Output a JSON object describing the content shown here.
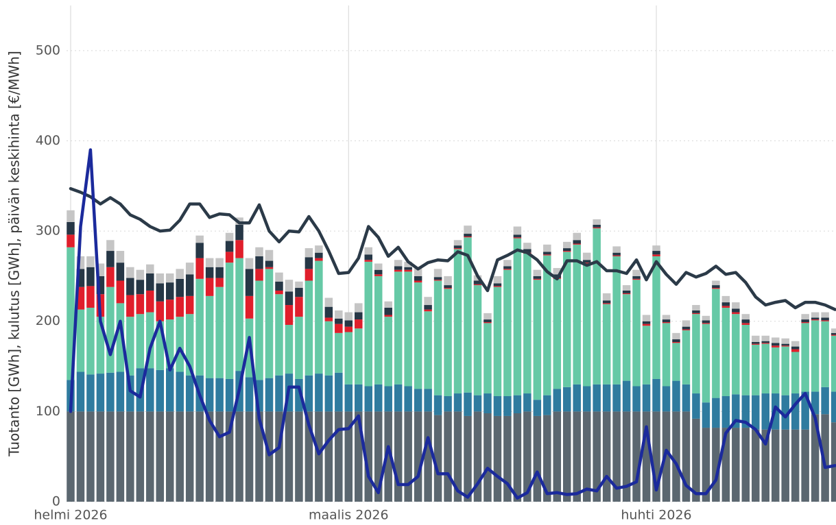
{
  "chart_data": {
    "type": "bar",
    "stacked": true,
    "y_label": "Tuotanto [GWh], kulutus [GWh], päivän keskihinta [€/MWh]",
    "categories": [
      "helmi 2026",
      null,
      null,
      null,
      null,
      null,
      null,
      null,
      null,
      null,
      null,
      null,
      null,
      null,
      null,
      null,
      null,
      null,
      null,
      null,
      null,
      null,
      null,
      null,
      null,
      null,
      null,
      null,
      "maalis 2026",
      null,
      null,
      null,
      null,
      null,
      null,
      null,
      null,
      null,
      null,
      null,
      null,
      null,
      null,
      null,
      null,
      null,
      null,
      null,
      null,
      null,
      null,
      null,
      null,
      null,
      null,
      null,
      null,
      null,
      null,
      "huhti 2026",
      null,
      null,
      null,
      null,
      null,
      null,
      null,
      null,
      null,
      null,
      null,
      null,
      null,
      null,
      null,
      null,
      null,
      null
    ],
    "ylim": [
      0,
      550
    ],
    "yticks": [
      0,
      100,
      200,
      300,
      400,
      500
    ],
    "grid": true,
    "series": [
      {
        "type": "bar",
        "color": "#5b6770",
        "values": [
          100,
          100,
          100,
          100,
          100,
          100,
          100,
          100,
          100,
          100,
          100,
          100,
          100,
          100,
          100,
          100,
          100,
          100,
          100,
          100,
          100,
          100,
          100,
          100,
          100,
          100,
          100,
          100,
          100,
          100,
          100,
          100,
          100,
          100,
          100,
          100,
          100,
          96,
          100,
          100,
          95,
          100,
          98,
          95,
          95,
          98,
          100,
          95,
          96,
          100,
          100,
          100,
          100,
          100,
          100,
          100,
          100,
          100,
          100,
          100,
          100,
          100,
          100,
          92,
          82,
          82,
          82,
          82,
          82,
          80,
          80,
          80,
          80,
          80,
          80,
          97,
          97,
          88
        ]
      },
      {
        "type": "bar",
        "color": "#2f7b9f",
        "values": [
          35,
          44,
          41,
          42,
          43,
          44,
          40,
          48,
          48,
          46,
          48,
          44,
          40,
          40,
          37,
          37,
          36,
          45,
          38,
          35,
          37,
          40,
          42,
          36,
          40,
          42,
          40,
          43,
          30,
          30,
          28,
          30,
          28,
          30,
          28,
          25,
          25,
          22,
          17,
          20,
          26,
          18,
          22,
          22,
          22,
          20,
          20,
          18,
          22,
          25,
          27,
          30,
          28,
          30,
          30,
          30,
          34,
          28,
          30,
          36,
          28,
          34,
          30,
          28,
          28,
          33,
          35,
          37,
          36,
          38,
          40,
          40,
          38,
          40,
          42,
          25,
          30,
          34
        ]
      },
      {
        "type": "bar",
        "color": "#66c9a6",
        "values": [
          147,
          69,
          74,
          63,
          95,
          76,
          65,
          60,
          62,
          54,
          54,
          61,
          68,
          107,
          91,
          101,
          129,
          125,
          65,
          110,
          121,
          90,
          54,
          69,
          105,
          125,
          60,
          44,
          58,
          62,
          138,
          120,
          77,
          125,
          127,
          118,
          86,
          127,
          119,
          160,
          172,
          122,
          78,
          121,
          140,
          174,
          155,
          133,
          155,
          122,
          150,
          155,
          136,
          173,
          89,
          142,
          96,
          118,
          65,
          136,
          70,
          42,
          60,
          88,
          87,
          121,
          98,
          89,
          78,
          56,
          55,
          51,
          54,
          46,
          76,
          79,
          73,
          62
        ]
      },
      {
        "type": "bar",
        "color": "#e01e2b",
        "values": [
          14,
          25,
          24,
          25,
          22,
          25,
          24,
          22,
          24,
          22,
          22,
          22,
          20,
          23,
          20,
          10,
          12,
          20,
          25,
          13,
          2,
          4,
          22,
          22,
          13,
          3,
          4,
          10,
          6,
          10,
          2,
          2,
          2,
          2,
          2,
          2,
          2,
          1,
          1,
          1,
          1,
          1,
          1,
          1,
          1,
          1,
          1,
          1,
          1,
          1,
          1,
          1,
          1,
          1,
          1,
          1,
          1,
          1,
          2,
          2,
          1,
          1,
          1,
          1,
          1,
          1,
          2,
          2,
          2,
          1,
          1,
          2,
          1,
          3,
          1,
          1,
          1,
          1
        ]
      },
      {
        "type": "bar",
        "color": "#263746",
        "values": [
          14,
          20,
          21,
          20,
          18,
          20,
          19,
          16,
          19,
          20,
          19,
          20,
          24,
          17,
          12,
          12,
          12,
          17,
          30,
          14,
          7,
          10,
          15,
          10,
          13,
          6,
          12,
          6,
          7,
          8,
          6,
          5,
          8,
          4,
          3,
          5,
          5,
          3,
          3,
          3,
          3,
          4,
          3,
          3,
          3,
          3,
          4,
          3,
          3,
          4,
          3,
          4,
          3,
          3,
          3,
          3,
          3,
          3,
          3,
          4,
          3,
          3,
          3,
          3,
          3,
          3,
          4,
          4,
          4,
          2,
          2,
          3,
          2,
          3,
          3,
          2,
          3,
          2
        ]
      },
      {
        "type": "bar",
        "color": "#c5c5c5",
        "values": [
          13,
          14,
          12,
          14,
          12,
          13,
          12,
          11,
          10,
          11,
          10,
          11,
          13,
          8,
          10,
          10,
          9,
          8,
          12,
          10,
          12,
          10,
          13,
          7,
          10,
          8,
          10,
          9,
          9,
          10,
          8,
          7,
          7,
          7,
          6,
          9,
          9,
          9,
          10,
          6,
          9,
          6,
          7,
          8,
          7,
          9,
          7,
          7,
          8,
          7,
          7,
          8,
          8,
          6,
          8,
          7,
          6,
          7,
          7,
          6,
          5,
          7,
          7,
          6,
          5,
          5,
          7,
          7,
          6,
          7,
          6,
          6,
          6,
          6,
          6,
          6,
          6,
          5
        ]
      },
      {
        "type": "line",
        "color": "#2b3a48",
        "values": [
          347,
          343,
          338,
          330,
          337,
          330,
          318,
          313,
          305,
          300,
          301,
          312,
          330,
          330,
          315,
          319,
          318,
          309,
          309,
          329,
          300,
          288,
          300,
          299,
          316,
          300,
          278,
          253,
          254,
          270,
          305,
          293,
          272,
          282,
          266,
          258,
          265,
          268,
          267,
          277,
          273,
          250,
          234,
          268,
          273,
          279,
          276,
          268,
          255,
          247,
          267,
          267,
          262,
          266,
          256,
          256,
          253,
          268,
          246,
          266,
          252,
          241,
          254,
          249,
          253,
          261,
          252,
          254,
          243,
          227,
          218,
          221,
          223,
          215,
          221,
          221,
          218,
          213
        ]
      },
      {
        "type": "line",
        "color": "#1b2a9c",
        "values": [
          100,
          305,
          390,
          200,
          163,
          200,
          123,
          116,
          170,
          200,
          146,
          170,
          150,
          118,
          90,
          72,
          77,
          125,
          182,
          92,
          52,
          60,
          127,
          127,
          85,
          53,
          68,
          80,
          81,
          95,
          28,
          10,
          61,
          19,
          19,
          28,
          71,
          31,
          31,
          12,
          5,
          20,
          37,
          28,
          20,
          4,
          10,
          33,
          9,
          10,
          8,
          9,
          14,
          12,
          28,
          15,
          17,
          22,
          83,
          13,
          57,
          42,
          18,
          9,
          9,
          24,
          76,
          90,
          88,
          80,
          64,
          105,
          94,
          108,
          120,
          93,
          38,
          40
        ]
      }
    ]
  }
}
